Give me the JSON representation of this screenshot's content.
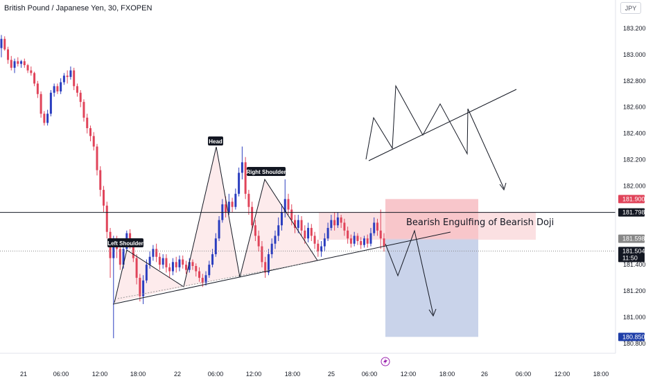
{
  "header": {
    "title": "British Pound / Japanese Yen, 30, FXOPEN",
    "currency_button": "JPY"
  },
  "colors": {
    "up": "#2a3dbf",
    "down": "#e0445a",
    "neckline_fill": "#fce4e6",
    "stop_zone": "#f8c6cb",
    "target_zone": "#c9d3ea",
    "current_price_bg": "#131722",
    "high_label_bg": "#e0445a",
    "target_label_bg": "#1e3ea8",
    "entry_label_bg": "#888888"
  },
  "chart_data": {
    "type": "candlestick",
    "ylim": [
      180.76,
      183.3
    ],
    "y_ticks": [
      "183.200",
      "183.000",
      "182.800",
      "182.600",
      "182.400",
      "182.200",
      "182.000",
      "181.400",
      "181.200",
      "181.000",
      "180.800"
    ],
    "y_tick_values": [
      183.2,
      183.0,
      182.8,
      182.6,
      182.4,
      182.2,
      182.0,
      181.4,
      181.2,
      181.0,
      180.8
    ],
    "x_ticks": [
      "21",
      "06:00",
      "12:00",
      "18:00",
      "22",
      "06:00",
      "12:00",
      "18:00",
      "25",
      "06:00",
      "12:00",
      "18:00",
      "26",
      "06:00",
      "12:00",
      "18:00"
    ],
    "price_labels": [
      {
        "key": "high",
        "text": "181.900",
        "value": 181.9
      },
      {
        "key": "line",
        "text": "181.798",
        "value": 181.798
      },
      {
        "key": "entry",
        "text": "181.598",
        "value": 181.598
      },
      {
        "key": "current",
        "text": "181.504",
        "sub": "11:50",
        "value": 181.504
      },
      {
        "key": "target",
        "text": "180.850",
        "value": 180.85
      }
    ],
    "annotations": {
      "left_shoulder": "Left Shoulder",
      "head": "Head",
      "right_shoulder": "Right Shoulder",
      "zone_text": "Bearish Engulfing of Bearish Doji"
    },
    "candles": [
      [
        183.05,
        183.12,
        182.98,
        183.15
      ],
      [
        183.12,
        183.04,
        183.03,
        183.14
      ],
      [
        183.04,
        182.96,
        182.93,
        183.06
      ],
      [
        182.96,
        182.9,
        182.88,
        182.99
      ],
      [
        182.9,
        182.95,
        182.86,
        182.97
      ],
      [
        182.95,
        182.93,
        182.91,
        182.98
      ],
      [
        182.93,
        182.95,
        182.9,
        182.96
      ],
      [
        182.95,
        182.92,
        182.9,
        182.97
      ],
      [
        182.92,
        182.88,
        182.86,
        182.93
      ],
      [
        182.88,
        182.86,
        182.84,
        182.91
      ],
      [
        182.86,
        182.78,
        182.76,
        182.87
      ],
      [
        182.78,
        182.7,
        182.67,
        182.8
      ],
      [
        182.7,
        182.55,
        182.52,
        182.72
      ],
      [
        182.55,
        182.48,
        182.46,
        182.57
      ],
      [
        182.48,
        182.55,
        182.46,
        182.58
      ],
      [
        182.55,
        182.71,
        182.53,
        182.73
      ],
      [
        182.71,
        182.76,
        182.68,
        182.78
      ],
      [
        182.76,
        182.72,
        182.7,
        182.78
      ],
      [
        182.72,
        182.79,
        182.7,
        182.82
      ],
      [
        182.79,
        182.84,
        182.77,
        182.86
      ],
      [
        182.84,
        182.83,
        182.78,
        182.88
      ],
      [
        182.83,
        182.88,
        182.81,
        182.91
      ],
      [
        182.88,
        182.76,
        182.73,
        182.9
      ],
      [
        182.76,
        182.71,
        182.68,
        182.78
      ],
      [
        182.71,
        182.64,
        182.6,
        182.73
      ],
      [
        182.64,
        182.52,
        182.49,
        182.66
      ],
      [
        182.52,
        182.44,
        182.4,
        182.55
      ],
      [
        182.44,
        182.38,
        182.34,
        182.46
      ],
      [
        182.38,
        182.3,
        182.27,
        182.41
      ],
      [
        182.3,
        182.12,
        182.08,
        182.32
      ],
      [
        182.12,
        181.97,
        181.92,
        182.15
      ],
      [
        181.97,
        181.85,
        181.8,
        182.0
      ],
      [
        181.85,
        181.65,
        181.6,
        181.88
      ],
      [
        181.65,
        181.45,
        181.3,
        181.68
      ],
      [
        181.45,
        181.6,
        180.84,
        181.62
      ],
      [
        181.6,
        181.52,
        181.45,
        181.62
      ],
      [
        181.52,
        181.4,
        181.36,
        181.55
      ],
      [
        181.4,
        181.52,
        181.37,
        181.58
      ],
      [
        181.52,
        181.64,
        181.5,
        181.66
      ],
      [
        181.64,
        181.56,
        181.52,
        181.67
      ],
      [
        181.56,
        181.45,
        181.42,
        181.58
      ],
      [
        181.45,
        181.3,
        181.25,
        181.48
      ],
      [
        181.3,
        181.16,
        181.12,
        181.33
      ],
      [
        181.16,
        181.28,
        181.1,
        181.32
      ],
      [
        181.28,
        181.4,
        181.26,
        181.44
      ],
      [
        181.4,
        181.46,
        181.37,
        181.5
      ],
      [
        181.46,
        181.52,
        181.43,
        181.55
      ],
      [
        181.52,
        181.46,
        181.42,
        181.56
      ],
      [
        181.46,
        181.4,
        181.36,
        181.49
      ],
      [
        181.4,
        181.45,
        181.37,
        181.48
      ],
      [
        181.45,
        181.38,
        181.34,
        181.48
      ],
      [
        181.38,
        181.35,
        181.3,
        181.41
      ],
      [
        181.35,
        181.42,
        181.32,
        181.45
      ],
      [
        181.42,
        181.38,
        181.34,
        181.46
      ],
      [
        181.38,
        181.44,
        181.35,
        181.47
      ],
      [
        181.44,
        181.4,
        181.37,
        181.47
      ],
      [
        181.4,
        181.36,
        181.33,
        181.43
      ],
      [
        181.36,
        181.42,
        181.34,
        181.45
      ],
      [
        181.42,
        181.39,
        181.36,
        181.44
      ],
      [
        181.39,
        181.35,
        181.31,
        181.41
      ],
      [
        181.35,
        181.3,
        181.27,
        181.38
      ],
      [
        181.3,
        181.26,
        181.23,
        181.33
      ],
      [
        181.26,
        181.32,
        181.24,
        181.35
      ],
      [
        181.32,
        181.4,
        181.3,
        181.43
      ],
      [
        181.4,
        181.48,
        181.38,
        181.52
      ],
      [
        181.48,
        181.6,
        181.46,
        181.64
      ],
      [
        181.6,
        181.74,
        181.58,
        181.77
      ],
      [
        181.74,
        181.86,
        181.72,
        181.9
      ],
      [
        181.86,
        181.8,
        181.76,
        181.92
      ],
      [
        181.8,
        181.88,
        181.78,
        181.94
      ],
      [
        181.88,
        181.84,
        181.8,
        181.91
      ],
      [
        181.84,
        181.94,
        181.82,
        181.98
      ],
      [
        181.94,
        182.1,
        181.92,
        182.14
      ],
      [
        182.1,
        182.18,
        182.05,
        182.3
      ],
      [
        182.18,
        181.94,
        181.9,
        182.22
      ],
      [
        181.94,
        181.84,
        181.78,
        181.97
      ],
      [
        181.84,
        181.7,
        181.66,
        181.88
      ],
      [
        181.7,
        181.62,
        181.58,
        181.74
      ],
      [
        181.62,
        181.54,
        181.5,
        181.66
      ],
      [
        181.54,
        181.42,
        181.38,
        181.58
      ],
      [
        181.42,
        181.34,
        181.3,
        181.46
      ],
      [
        181.34,
        181.48,
        181.32,
        181.52
      ],
      [
        181.48,
        181.56,
        181.45,
        181.6
      ],
      [
        181.56,
        181.62,
        181.52,
        181.66
      ],
      [
        181.62,
        181.7,
        181.58,
        181.76
      ],
      [
        181.7,
        181.8,
        181.66,
        181.86
      ],
      [
        181.8,
        181.9,
        181.76,
        182.05
      ],
      [
        181.9,
        181.82,
        181.78,
        181.94
      ],
      [
        181.82,
        181.74,
        181.7,
        181.86
      ],
      [
        181.74,
        181.68,
        181.64,
        181.78
      ],
      [
        181.68,
        181.74,
        181.64,
        181.78
      ],
      [
        181.74,
        181.66,
        181.62,
        181.77
      ],
      [
        181.66,
        181.6,
        181.56,
        181.7
      ],
      [
        181.6,
        181.68,
        181.57,
        181.72
      ],
      [
        181.68,
        181.62,
        181.58,
        181.71
      ],
      [
        181.62,
        181.56,
        181.52,
        181.65
      ],
      [
        181.56,
        181.5,
        181.46,
        181.59
      ],
      [
        181.5,
        181.54,
        181.46,
        181.58
      ],
      [
        181.54,
        181.6,
        181.5,
        181.64
      ],
      [
        181.6,
        181.68,
        181.58,
        181.72
      ],
      [
        181.68,
        181.74,
        181.66,
        181.78
      ],
      [
        181.74,
        181.7,
        181.66,
        181.8
      ],
      [
        181.7,
        181.76,
        181.68,
        181.8
      ],
      [
        181.76,
        181.72,
        181.68,
        181.78
      ],
      [
        181.72,
        181.66,
        181.62,
        181.75
      ],
      [
        181.66,
        181.6,
        181.56,
        181.69
      ],
      [
        181.6,
        181.56,
        181.53,
        181.63
      ],
      [
        181.56,
        181.62,
        181.54,
        181.65
      ],
      [
        181.62,
        181.58,
        181.55,
        181.64
      ],
      [
        181.58,
        181.55,
        181.52,
        181.61
      ],
      [
        181.55,
        181.6,
        181.53,
        181.62
      ],
      [
        181.6,
        181.56,
        181.53,
        181.63
      ],
      [
        181.56,
        181.64,
        181.54,
        181.68
      ],
      [
        181.64,
        181.72,
        181.62,
        181.76
      ],
      [
        181.72,
        181.66,
        181.62,
        181.75
      ],
      [
        181.66,
        181.6,
        181.52,
        181.82
      ],
      [
        181.6,
        181.54,
        181.5,
        181.64
      ]
    ]
  }
}
